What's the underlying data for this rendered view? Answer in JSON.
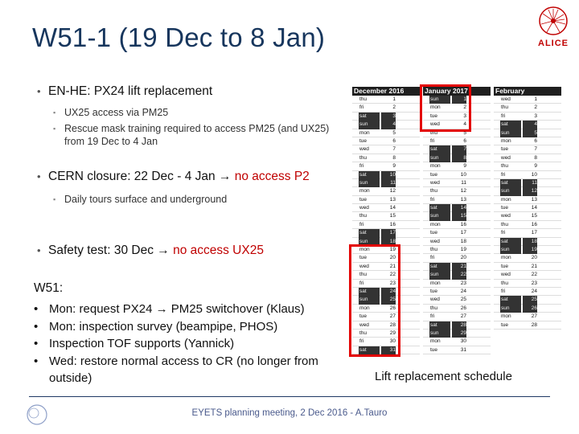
{
  "title": "W51-1 (19 Dec to 8 Jan)",
  "logo": {
    "text": "ALICE",
    "accent": "#c00000"
  },
  "bullets": [
    {
      "text": "EN-HE: PX24 lift replacement",
      "subs": [
        "UX25 access via PM25",
        "Rescue mask training required to access PM25 (and UX25) from 19 Dec to 4 Jan"
      ]
    },
    {
      "text": "CERN closure: 22 Dec - 4 Jan ",
      "arrow": "→",
      "highlight": "no access P2",
      "subs": [
        "Daily tours surface and underground"
      ]
    },
    {
      "text": "Safety test: 30 Dec ",
      "arrow": "→",
      "highlight": "no access UX25"
    }
  ],
  "w51": {
    "heading": "W51:",
    "items": [
      "Mon: request PX24 → PM25 switchover (Klaus)",
      "Mon: inspection survey (beampipe, PHOS)",
      "Inspection TOF supports (Yannick)",
      "Wed: restore normal access to CR (no longer from outside)"
    ]
  },
  "calendar": {
    "months": [
      {
        "name": "December 2016",
        "days": [
          [
            "thu",
            "1"
          ],
          [
            "fri",
            "2"
          ],
          [
            "sat",
            "3"
          ],
          [
            "sun",
            "4"
          ],
          [
            "mon",
            "5"
          ],
          [
            "tue",
            "6"
          ],
          [
            "wed",
            "7"
          ],
          [
            "thu",
            "8"
          ],
          [
            "fri",
            "9"
          ],
          [
            "sat",
            "10"
          ],
          [
            "sun",
            "11"
          ],
          [
            "mon",
            "12"
          ],
          [
            "tue",
            "13"
          ],
          [
            "wed",
            "14"
          ],
          [
            "thu",
            "15"
          ],
          [
            "fri",
            "16"
          ],
          [
            "sat",
            "17"
          ],
          [
            "sun",
            "18"
          ],
          [
            "mon",
            "19"
          ],
          [
            "tue",
            "20"
          ],
          [
            "wed",
            "21"
          ],
          [
            "thu",
            "22"
          ],
          [
            "fri",
            "23"
          ],
          [
            "sat",
            "24"
          ],
          [
            "sun",
            "25"
          ],
          [
            "mon",
            "26"
          ],
          [
            "tue",
            "27"
          ],
          [
            "wed",
            "28"
          ],
          [
            "thu",
            "29"
          ],
          [
            "fri",
            "30"
          ],
          [
            "sat",
            "31"
          ]
        ]
      },
      {
        "name": "January 2017",
        "days": [
          [
            "sun",
            "1"
          ],
          [
            "mon",
            "2"
          ],
          [
            "tue",
            "3"
          ],
          [
            "wed",
            "4"
          ],
          [
            "thu",
            "5"
          ],
          [
            "fri",
            "6"
          ],
          [
            "sat",
            "7"
          ],
          [
            "sun",
            "8"
          ],
          [
            "mon",
            "9"
          ],
          [
            "tue",
            "10"
          ],
          [
            "wed",
            "11"
          ],
          [
            "thu",
            "12"
          ],
          [
            "fri",
            "13"
          ],
          [
            "sat",
            "14"
          ],
          [
            "sun",
            "15"
          ],
          [
            "mon",
            "16"
          ],
          [
            "tue",
            "17"
          ],
          [
            "wed",
            "18"
          ],
          [
            "thu",
            "19"
          ],
          [
            "fri",
            "20"
          ],
          [
            "sat",
            "21"
          ],
          [
            "sun",
            "22"
          ],
          [
            "mon",
            "23"
          ],
          [
            "tue",
            "24"
          ],
          [
            "wed",
            "25"
          ],
          [
            "thu",
            "26"
          ],
          [
            "fri",
            "27"
          ],
          [
            "sat",
            "28"
          ],
          [
            "sun",
            "29"
          ],
          [
            "mon",
            "30"
          ],
          [
            "tue",
            "31"
          ]
        ]
      },
      {
        "name": "February",
        "days": [
          [
            "wed",
            "1"
          ],
          [
            "thu",
            "2"
          ],
          [
            "fri",
            "3"
          ],
          [
            "sat",
            "4"
          ],
          [
            "sun",
            "5"
          ],
          [
            "mon",
            "6"
          ],
          [
            "tue",
            "7"
          ],
          [
            "wed",
            "8"
          ],
          [
            "thu",
            "9"
          ],
          [
            "fri",
            "10"
          ],
          [
            "sat",
            "11"
          ],
          [
            "sun",
            "12"
          ],
          [
            "mon",
            "13"
          ],
          [
            "tue",
            "14"
          ],
          [
            "wed",
            "15"
          ],
          [
            "thu",
            "16"
          ],
          [
            "fri",
            "17"
          ],
          [
            "sat",
            "18"
          ],
          [
            "sun",
            "19"
          ],
          [
            "mon",
            "20"
          ],
          [
            "tue",
            "21"
          ],
          [
            "wed",
            "22"
          ],
          [
            "thu",
            "23"
          ],
          [
            "fri",
            "24"
          ],
          [
            "sat",
            "25"
          ],
          [
            "sun",
            "26"
          ],
          [
            "mon",
            "27"
          ],
          [
            "tue",
            "28"
          ]
        ]
      }
    ],
    "caption": "Lift replacement schedule"
  },
  "footer": {
    "text": "EYETS planning meeting, 2 Dec 2016 - A.Tauro"
  },
  "colors": {
    "title": "#17365d",
    "highlight": "#c00000",
    "box": "#e30000"
  }
}
